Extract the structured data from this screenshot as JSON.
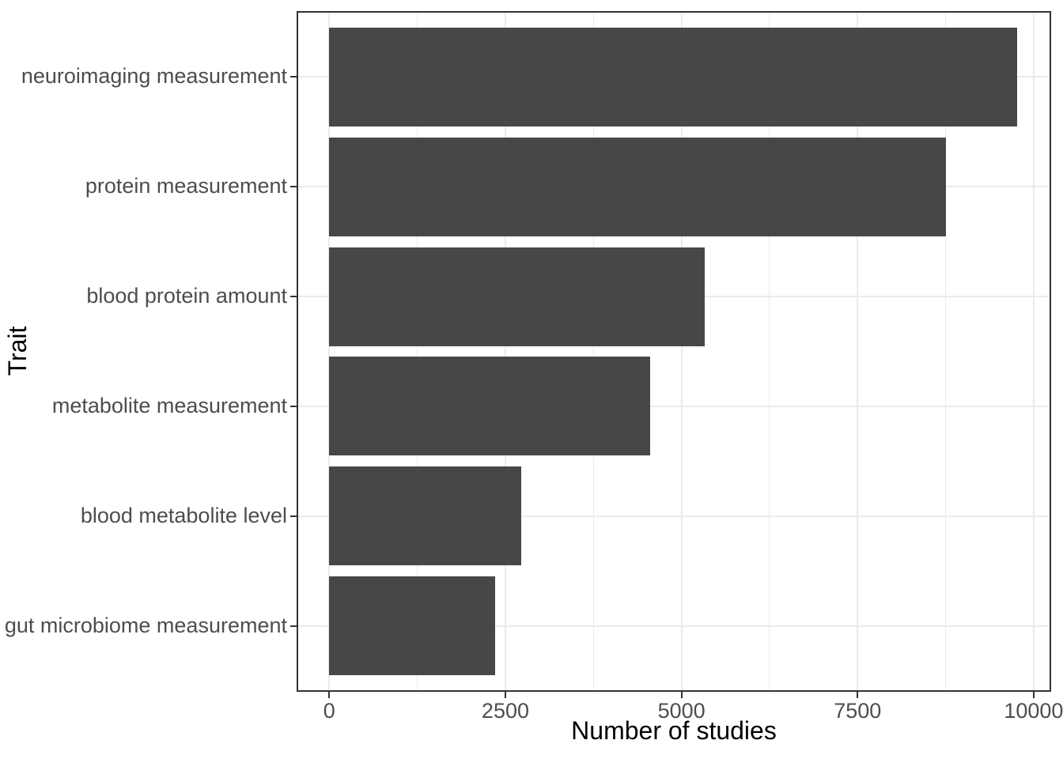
{
  "chart_data": {
    "type": "bar",
    "orientation": "horizontal",
    "title": "",
    "xlabel": "Number of studies",
    "ylabel": "Trait",
    "categories": [
      "neuroimaging measurement",
      "protein measurement",
      "blood protein amount",
      "metabolite measurement",
      "blood metabolite level",
      "gut microbiome measurement"
    ],
    "values": [
      9770,
      8750,
      5330,
      4550,
      2730,
      2350
    ],
    "x_major_ticks": [
      0,
      2500,
      5000,
      7500,
      10000
    ],
    "x_tick_labels": [
      "0",
      "2500",
      "5000",
      "7500",
      "10000"
    ],
    "x_minor_gridlines": [
      1250,
      3750,
      6250,
      8750
    ],
    "x_range": [
      -464,
      10248
    ],
    "bar_width_fraction": 0.9,
    "grid": "vertical-major-and-minor, horizontal-major-at-categories",
    "legend": "none",
    "colors": {
      "bar_fill": "#474747",
      "panel_border": "#333333",
      "gridline": "#EBEBEB",
      "tick_mark": "#333333",
      "axis_text": "#4D4D4D",
      "axis_title": "#000000",
      "background": "#FFFFFF"
    }
  }
}
